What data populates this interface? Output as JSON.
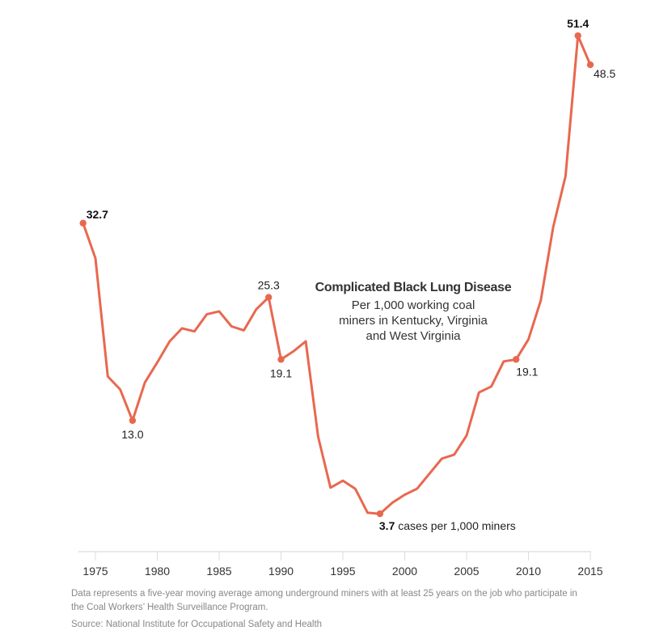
{
  "chart_data": {
    "type": "line",
    "title": "Complicated Black Lung Disease",
    "subtitle": "Per 1,000 working coal miners in Kentucky, Virginia and West Virginia",
    "xlabel": "",
    "ylabel": "",
    "xlim": [
      1974,
      2015
    ],
    "ylim": [
      0,
      51.4
    ],
    "grid": false,
    "x_ticks": [
      1975,
      1980,
      1985,
      1990,
      1995,
      2000,
      2005,
      2010,
      2015
    ],
    "series": [
      {
        "name": "Complicated black lung cases per 1,000 miners",
        "color": "#e8684f",
        "x": [
          1974,
          1975,
          1976,
          1977,
          1978,
          1979,
          1980,
          1981,
          1982,
          1983,
          1984,
          1985,
          1986,
          1987,
          1988,
          1989,
          1990,
          1991,
          1992,
          1993,
          1994,
          1995,
          1996,
          1997,
          1998,
          1999,
          2000,
          2001,
          2002,
          2003,
          2004,
          2005,
          2006,
          2007,
          2008,
          2009,
          2010,
          2011,
          2012,
          2013,
          2014,
          2015
        ],
        "values": [
          32.7,
          29.2,
          17.4,
          16.1,
          13.0,
          16.8,
          18.8,
          20.9,
          22.2,
          21.9,
          23.6,
          23.9,
          22.4,
          22.0,
          24.1,
          25.3,
          19.1,
          19.9,
          20.9,
          11.4,
          6.3,
          7.0,
          6.2,
          3.8,
          3.7,
          4.8,
          5.6,
          6.2,
          7.7,
          9.2,
          9.6,
          11.5,
          15.8,
          16.4,
          18.9,
          19.1,
          21.1,
          25.0,
          32.3,
          37.4,
          51.4,
          48.5
        ]
      }
    ],
    "annotations": [
      {
        "x": 1974,
        "value": 32.7,
        "label": "32.7",
        "bold": true,
        "suffix": ""
      },
      {
        "x": 1978,
        "value": 13.0,
        "label": "13.0",
        "bold": false,
        "suffix": ""
      },
      {
        "x": 1989,
        "value": 25.3,
        "label": "25.3",
        "bold": false,
        "suffix": ""
      },
      {
        "x": 1990,
        "value": 19.1,
        "label": "19.1",
        "bold": false,
        "suffix": ""
      },
      {
        "x": 1998,
        "value": 3.7,
        "label": "3.7",
        "bold": true,
        "suffix": " cases per 1,000 miners"
      },
      {
        "x": 2009,
        "value": 19.1,
        "label": "19.1",
        "bold": false,
        "suffix": ""
      },
      {
        "x": 2014,
        "value": 51.4,
        "label": "51.4",
        "bold": true,
        "suffix": ""
      },
      {
        "x": 2015,
        "value": 48.5,
        "label": "48.5",
        "bold": false,
        "suffix": ""
      }
    ],
    "legend": "none"
  },
  "title_block": {
    "title": "Complicated Black Lung Disease",
    "subtitle_lines": [
      "Per 1,000 working coal",
      "miners in Kentucky, Virginia",
      "and West Virginia"
    ]
  },
  "footer": {
    "note": "Data represents a five-year moving average among underground miners with at least 25 years on the job who participate in the Coal Workers’ Health Surveillance Program.",
    "source": "Source: National Institute for Occupational Safety and Health"
  }
}
